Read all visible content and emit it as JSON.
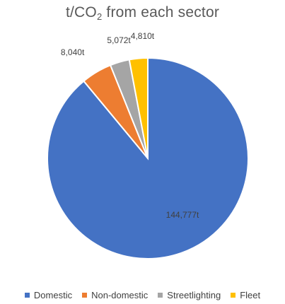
{
  "chart_data": {
    "type": "pie",
    "title": {
      "main": "t/CO",
      "subscript": "2",
      "suffix": " from each sector"
    },
    "slices": [
      {
        "name": "Domestic",
        "value": 144777,
        "label": "144,777t",
        "color": "#4472C4"
      },
      {
        "name": "Non-domestic",
        "value": 8040,
        "label": "8,040t",
        "color": "#ED7D31"
      },
      {
        "name": "Streetlighting",
        "value": 5072,
        "label": "5,072t",
        "color": "#A5A5A5"
      },
      {
        "name": "Fleet",
        "value": 4810,
        "label": "4,810t",
        "color": "#FFC000"
      }
    ],
    "legend_position": "bottom",
    "start_angle_deg": 0,
    "direction": "clockwise"
  }
}
